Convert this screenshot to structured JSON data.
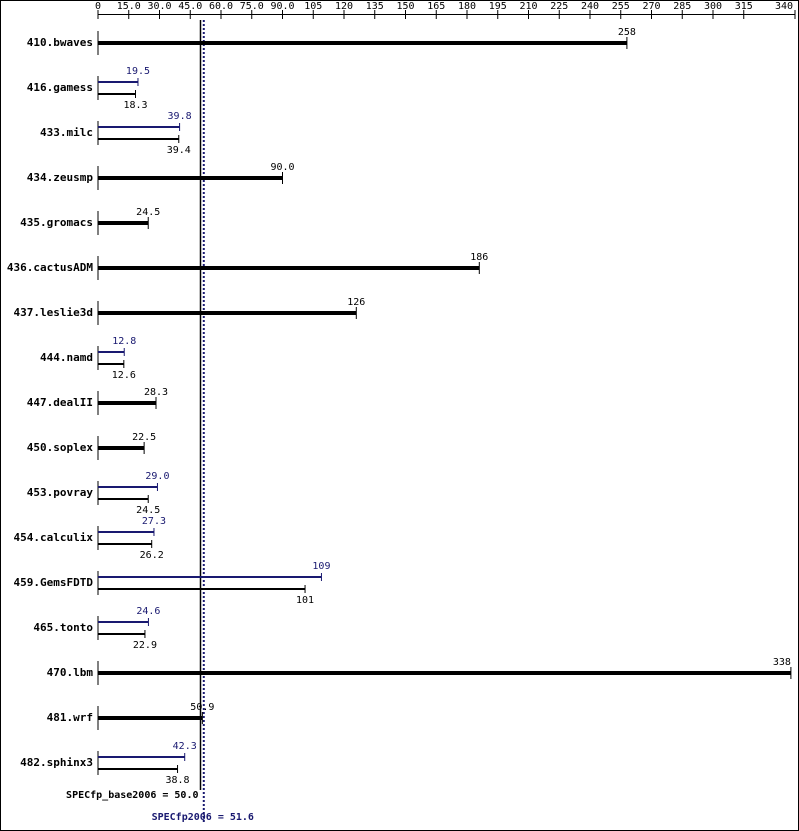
{
  "chart_data": {
    "type": "bar",
    "orientation": "horizontal",
    "categories": [
      "410.bwaves",
      "416.gamess",
      "433.milc",
      "434.zeusmp",
      "435.gromacs",
      "436.cactusADM",
      "437.leslie3d",
      "444.namd",
      "447.dealII",
      "450.soplex",
      "453.povray",
      "454.calculix",
      "459.GemsFDTD",
      "465.tonto",
      "470.lbm",
      "481.wrf",
      "482.sphinx3"
    ],
    "series": [
      {
        "color": "#191970",
        "role": "peak",
        "values": [
          null,
          19.5,
          39.8,
          null,
          null,
          null,
          null,
          12.8,
          null,
          null,
          29.0,
          27.3,
          109,
          24.6,
          null,
          null,
          42.3
        ],
        "value_labels": [
          null,
          "19.5",
          "39.8",
          null,
          null,
          null,
          null,
          "12.8",
          null,
          null,
          "29.0",
          "27.3",
          "109",
          "24.6",
          null,
          null,
          "42.3"
        ]
      },
      {
        "color": "#000000",
        "role": "base",
        "values": [
          258,
          18.3,
          39.4,
          90.0,
          24.5,
          186,
          126,
          12.6,
          28.3,
          22.5,
          24.5,
          26.2,
          101,
          22.9,
          338,
          50.9,
          38.8
        ],
        "value_labels": [
          "258",
          "18.3",
          "39.4",
          "90.0",
          "24.5",
          "186",
          "126",
          "12.6",
          "28.3",
          "22.5",
          "24.5",
          "26.2",
          "101",
          "22.9",
          "338",
          "50.9",
          "38.8"
        ]
      }
    ],
    "xlim": [
      0,
      340
    ],
    "xticks": [
      0,
      {
        "value": 15,
        "label": "15.0"
      },
      {
        "value": 30,
        "label": "30.0"
      },
      {
        "value": 45,
        "label": "45.0"
      },
      {
        "value": 60,
        "label": "60.0"
      },
      {
        "value": 75,
        "label": "75.0"
      },
      {
        "value": 90,
        "label": "90.0"
      },
      105,
      120,
      135,
      150,
      165,
      180,
      195,
      210,
      225,
      240,
      255,
      270,
      285,
      300,
      315,
      340
    ],
    "references": [
      {
        "label": "SPECfp_base2006 = 50.0",
        "value": 50.0,
        "color": "#000000",
        "style": "solid"
      },
      {
        "label": "SPECfp2006 = 51.6",
        "value": 51.6,
        "color": "#191970",
        "style": "dotted"
      }
    ]
  }
}
